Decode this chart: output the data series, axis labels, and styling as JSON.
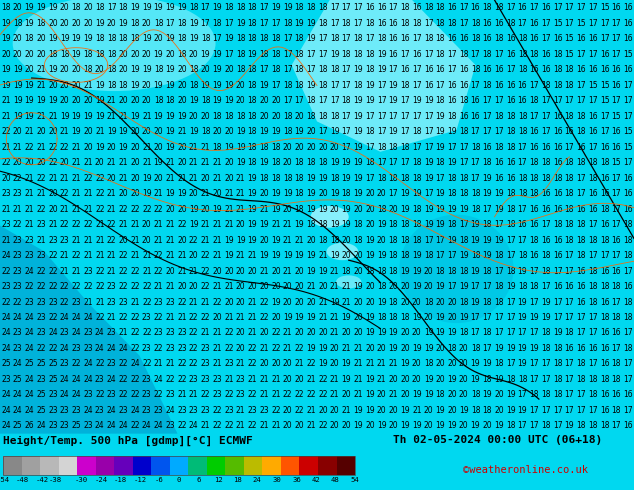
{
  "title_left": "Height/Temp. 500 hPa [gdmp][°C] ECMWF",
  "title_right": "Th 02-05-2024 00:00 UTC (06+18)",
  "copyright": "©weatheronline.co.uk",
  "colorbar_colors": [
    "#888888",
    "#a0a0a0",
    "#b8b8b8",
    "#d4d4d4",
    "#cc00cc",
    "#9900aa",
    "#6600bb",
    "#0000cc",
    "#0055ee",
    "#00aaff",
    "#00bb77",
    "#00cc00",
    "#55bb00",
    "#bbbb00",
    "#ffaa00",
    "#ff5500",
    "#cc0000",
    "#880000",
    "#550000"
  ],
  "colorbar_labels": [
    "-54",
    "-48",
    "-42",
    "-38",
    "-30",
    "-24",
    "-18",
    "-12",
    "-6",
    "0",
    "6",
    "12",
    "18",
    "24",
    "30",
    "36",
    "42",
    "48",
    "54"
  ],
  "bg_cyan": "#00d8f0",
  "light_cyan": "#80eeff",
  "lighter_cyan": "#aaf6ff",
  "dark_cyan": "#0099cc",
  "footer_gray": "#c0c0c0",
  "map_rows": 28,
  "map_cols": 54,
  "fontsize_map": 5.5,
  "fontsize_footer": 8.0,
  "fontsize_copyright": 7.5,
  "fontsize_tick": 5.2
}
